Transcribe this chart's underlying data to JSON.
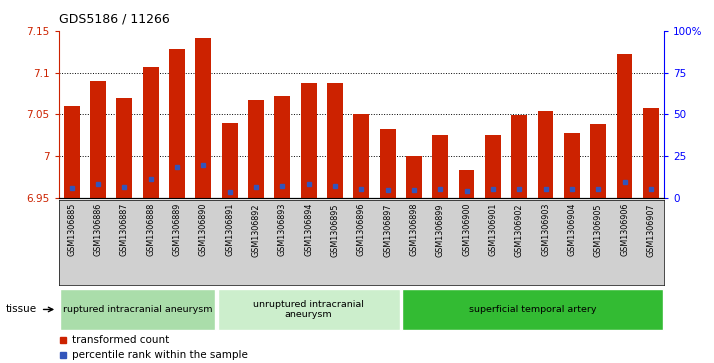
{
  "title": "GDS5186 / 11266",
  "samples": [
    "GSM1306885",
    "GSM1306886",
    "GSM1306887",
    "GSM1306888",
    "GSM1306889",
    "GSM1306890",
    "GSM1306891",
    "GSM1306892",
    "GSM1306893",
    "GSM1306894",
    "GSM1306895",
    "GSM1306896",
    "GSM1306897",
    "GSM1306898",
    "GSM1306899",
    "GSM1306900",
    "GSM1306901",
    "GSM1306902",
    "GSM1306903",
    "GSM1306904",
    "GSM1306905",
    "GSM1306906",
    "GSM1306907"
  ],
  "bar_values": [
    7.06,
    7.09,
    7.07,
    7.107,
    7.128,
    7.142,
    7.04,
    7.067,
    7.072,
    7.088,
    7.087,
    7.05,
    7.033,
    7.0,
    7.025,
    6.983,
    7.025,
    7.049,
    7.054,
    7.028,
    7.038,
    7.122,
    7.058
  ],
  "dot_values": [
    6.962,
    6.967,
    6.963,
    6.973,
    6.987,
    6.989,
    6.957,
    6.963,
    6.964,
    6.967,
    6.964,
    6.961,
    6.959,
    6.959,
    6.961,
    6.958,
    6.961,
    6.961,
    6.961,
    6.961,
    6.961,
    6.969,
    6.961
  ],
  "ymin": 6.95,
  "ymax": 7.15,
  "ytick_left": [
    6.95,
    7.0,
    7.05,
    7.1,
    7.15
  ],
  "ytick_left_labels": [
    "6.95",
    "7",
    "7.05",
    "7.1",
    "7.15"
  ],
  "ytick_right_positions": [
    6.95,
    7.0,
    7.05,
    7.1,
    7.15
  ],
  "ytick_right_labels": [
    "0",
    "25",
    "50",
    "75",
    "100%"
  ],
  "grid_lines": [
    7.0,
    7.05,
    7.1
  ],
  "bar_color": "#cc2200",
  "dot_color": "#3355bb",
  "plot_bg": "#ffffff",
  "label_bg": "#d0d0d0",
  "groups": [
    {
      "label": "ruptured intracranial aneurysm",
      "start": 0,
      "end": 6,
      "color": "#aaddaa"
    },
    {
      "label": "unruptured intracranial\naneurysm",
      "start": 6,
      "end": 13,
      "color": "#cceecc"
    },
    {
      "label": "superficial temporal artery",
      "start": 13,
      "end": 23,
      "color": "#33bb33"
    }
  ],
  "legend": [
    {
      "label": "transformed count",
      "color": "#cc2200"
    },
    {
      "label": "percentile rank within the sample",
      "color": "#3355bb"
    }
  ],
  "tissue_label": "tissue"
}
